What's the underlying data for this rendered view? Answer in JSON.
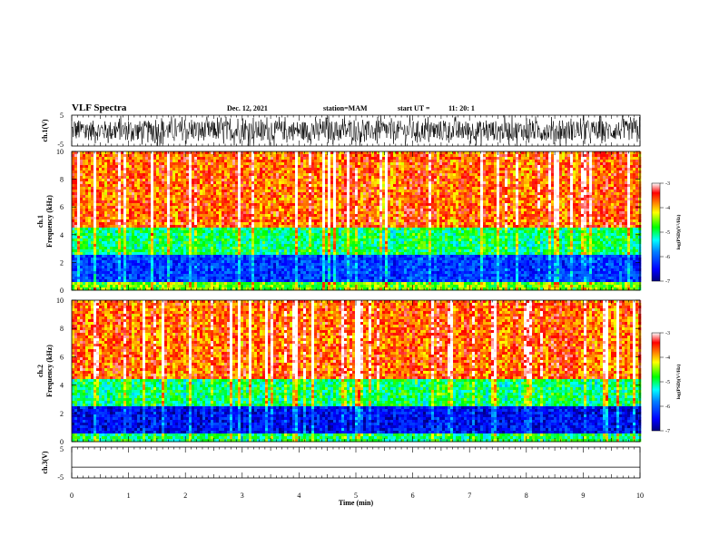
{
  "header": {
    "title": "VLF Spectra",
    "date": "Dec. 12, 2021",
    "station": "station=MAM",
    "start_label": "start  UT  =",
    "start_time": "11: 20: 1"
  },
  "colorbar": {
    "label": "log(PSD)(V²/Hz)",
    "ticks": [
      "-3",
      "-4",
      "-5",
      "-6",
      "-7"
    ],
    "range": [
      -7,
      -3
    ],
    "colors": [
      "#000080",
      "#0000ff",
      "#0080ff",
      "#00ffff",
      "#00ff00",
      "#ffff00",
      "#ff8000",
      "#ff0000",
      "#ffffff"
    ]
  },
  "chart_data": [
    {
      "type": "line",
      "name": "waveform",
      "ylabel": "ch.1(V)",
      "yticks": [
        "5",
        "-5"
      ],
      "ylim": [
        -5,
        5
      ],
      "xlim": [
        0,
        10
      ],
      "description_values": {
        "amplitude_range_V": [
          -5,
          5
        ],
        "signal": "broadband noise"
      }
    },
    {
      "type": "heatmap",
      "name": "spectrogram-ch1",
      "ylabel_top": "ch.1",
      "ylabel": "Frequency  (kHz)",
      "yticks": [
        "0",
        "2",
        "4",
        "6",
        "8",
        "10"
      ],
      "ylim": [
        0,
        10
      ],
      "xlim": [
        0,
        10
      ],
      "zlim": [
        -7,
        -3
      ],
      "bands": [
        {
          "freq_kHz": [
            0,
            0.6
          ],
          "log_psd": -4.6
        },
        {
          "freq_kHz": [
            0.6,
            2.5
          ],
          "log_psd": -6.2
        },
        {
          "freq_kHz": [
            2.5,
            4.5
          ],
          "log_psd": -5.0
        },
        {
          "freq_kHz": [
            4.5,
            10
          ],
          "log_psd": -3.7
        }
      ]
    },
    {
      "type": "heatmap",
      "name": "spectrogram-ch2",
      "ylabel_top": "ch.2",
      "ylabel": "Frequency  (kHz)",
      "yticks": [
        "0",
        "2",
        "4",
        "6",
        "8",
        "10"
      ],
      "ylim": [
        0,
        10
      ],
      "xlim": [
        0,
        10
      ],
      "zlim": [
        -7,
        -3
      ],
      "bands": [
        {
          "freq_kHz": [
            0,
            0.6
          ],
          "log_psd": -5.0
        },
        {
          "freq_kHz": [
            0.6,
            2.5
          ],
          "log_psd": -6.5
        },
        {
          "freq_kHz": [
            2.5,
            4.5
          ],
          "log_psd": -5.0
        },
        {
          "freq_kHz": [
            4.5,
            10
          ],
          "log_psd": -3.7
        }
      ]
    },
    {
      "type": "line",
      "name": "ch3",
      "ylabel": "ch.3(V)",
      "yticks": [
        "5",
        "-5"
      ],
      "ylim": [
        -5,
        5
      ],
      "xlim": [
        0,
        10
      ],
      "y": [
        -1.5
      ]
    }
  ],
  "xaxis": {
    "label": "Time  (min)",
    "ticks": [
      "0",
      "1",
      "2",
      "3",
      "4",
      "5",
      "6",
      "7",
      "8",
      "9",
      "10"
    ],
    "range": [
      0,
      10
    ]
  }
}
